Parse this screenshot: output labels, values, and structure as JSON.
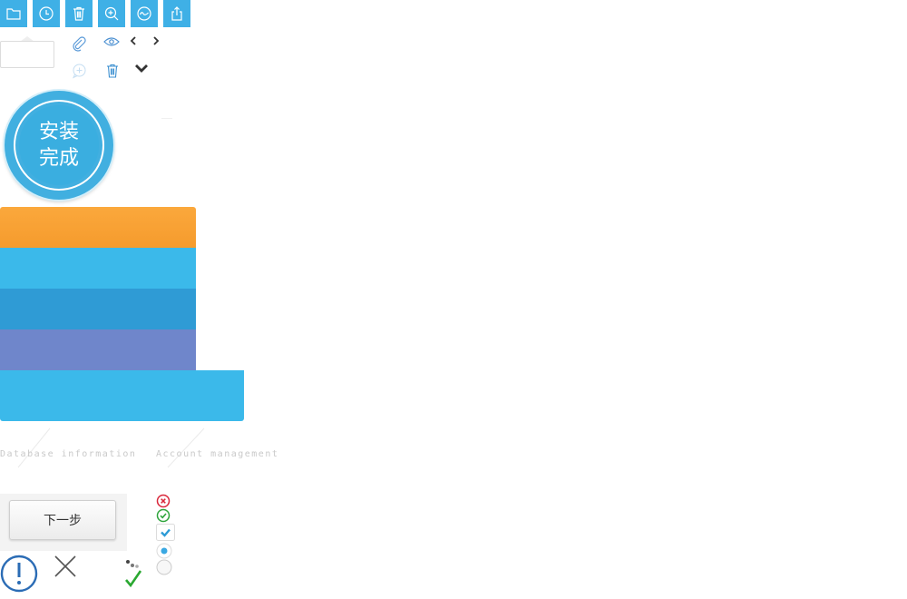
{
  "toolbar": {
    "buttons": [
      {
        "icon": "folder-icon"
      },
      {
        "icon": "clock-icon"
      },
      {
        "icon": "trash-icon"
      },
      {
        "icon": "zoom-in-icon"
      },
      {
        "icon": "wave-icon"
      },
      {
        "icon": "share-icon"
      }
    ],
    "color": "#3fb0e6"
  },
  "secondary_icons": [
    "paperclip-icon",
    "eye-icon",
    "chevron-left-icon",
    "chevron-right-icon",
    "comment-add-icon",
    "trash-icon",
    "chevron-down-icon"
  ],
  "badge": {
    "line1": "安装",
    "line2": "完成",
    "color": "#41afe0"
  },
  "bars": {
    "colors": [
      "#f9a234",
      "#3bb9ea",
      "#2f9bd5",
      "#6f86cb",
      "#3bb9ea"
    ]
  },
  "steps": {
    "database": "Database information",
    "account": "Account management"
  },
  "next_button": {
    "label": "下一步"
  },
  "status_icons": [
    "error-circle-icon",
    "success-circle-icon",
    "checkbox-checked-icon",
    "radio-selected-icon",
    "radio-empty-icon",
    "info-exclamation-icon",
    "close-x-icon",
    "loading-dots-icon",
    "green-check-icon"
  ]
}
